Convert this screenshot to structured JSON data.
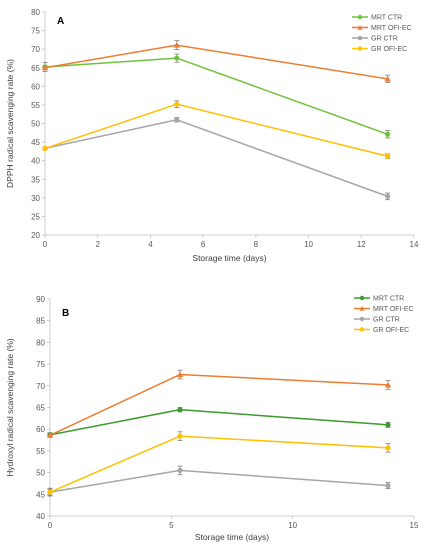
{
  "chart_data": [
    {
      "type": "line",
      "panel_label": "A",
      "xlabel": "Storage time (days)",
      "ylabel": "DPPH radical scavenging rate (%)",
      "xlim": [
        0,
        14
      ],
      "ylim": [
        20,
        80
      ],
      "xticks": [
        "0",
        "2",
        "4",
        "6",
        "8",
        "10",
        "12",
        "14"
      ],
      "yticks": [
        "20",
        "25",
        "30",
        "35",
        "40",
        "45",
        "50",
        "55",
        "60",
        "65",
        "70",
        "75",
        "80"
      ],
      "x": [
        0,
        5,
        13
      ],
      "grid": false,
      "legend_position": "top-right",
      "series": [
        {
          "name": "MRT CTR",
          "color": "#70c13a",
          "marker": "circle",
          "values": [
            65.2,
            67.6,
            47.1
          ],
          "errors": [
            1.2,
            1.1,
            1.0
          ]
        },
        {
          "name": "MRT OFI-EC",
          "color": "#ed7d31",
          "marker": "triangle",
          "values": [
            65.0,
            71.1,
            62.0
          ],
          "errors": [
            0.5,
            1.2,
            1.0
          ]
        },
        {
          "name": "GR CTR",
          "color": "#a5a5a5",
          "marker": "circle",
          "values": [
            43.3,
            51.0,
            30.4
          ],
          "errors": [
            0.3,
            0.6,
            0.9
          ]
        },
        {
          "name": "GR OFI-EC",
          "color": "#ffc000",
          "marker": "circle",
          "values": [
            43.3,
            55.2,
            41.2
          ],
          "errors": [
            0.3,
            0.9,
            0.6
          ]
        }
      ]
    },
    {
      "type": "line",
      "panel_label": "B",
      "xlabel": "Storage time (days)",
      "ylabel": "Hydroxyl radical scavenging rate (%)",
      "xlim": [
        0,
        14
      ],
      "ylim": [
        40,
        90
      ],
      "xticks": [
        "0",
        "5",
        "10",
        "15"
      ],
      "yticks": [
        "40",
        "45",
        "50",
        "55",
        "60",
        "65",
        "70",
        "75",
        "80",
        "85",
        "90"
      ],
      "x": [
        0,
        5,
        13
      ],
      "grid": false,
      "legend_position": "top-right",
      "series": [
        {
          "name": "MRT CTR",
          "color": "#3a9a2b",
          "marker": "circle",
          "values": [
            58.7,
            64.5,
            61.0
          ],
          "errors": [
            0.5,
            0.5,
            0.6
          ]
        },
        {
          "name": "MRT OFI-EC",
          "color": "#ed7d31",
          "marker": "triangle",
          "values": [
            58.6,
            72.6,
            70.2
          ],
          "errors": [
            0.4,
            1.0,
            1.0
          ]
        },
        {
          "name": "GR CTR",
          "color": "#a5a5a5",
          "marker": "circle",
          "values": [
            45.5,
            50.5,
            47.0
          ],
          "errors": [
            0.9,
            1.0,
            0.7
          ]
        },
        {
          "name": "GR OFI-EC",
          "color": "#ffc000",
          "marker": "circle",
          "values": [
            45.5,
            58.4,
            55.7
          ],
          "errors": [
            0.7,
            1.0,
            1.0
          ]
        }
      ]
    }
  ]
}
